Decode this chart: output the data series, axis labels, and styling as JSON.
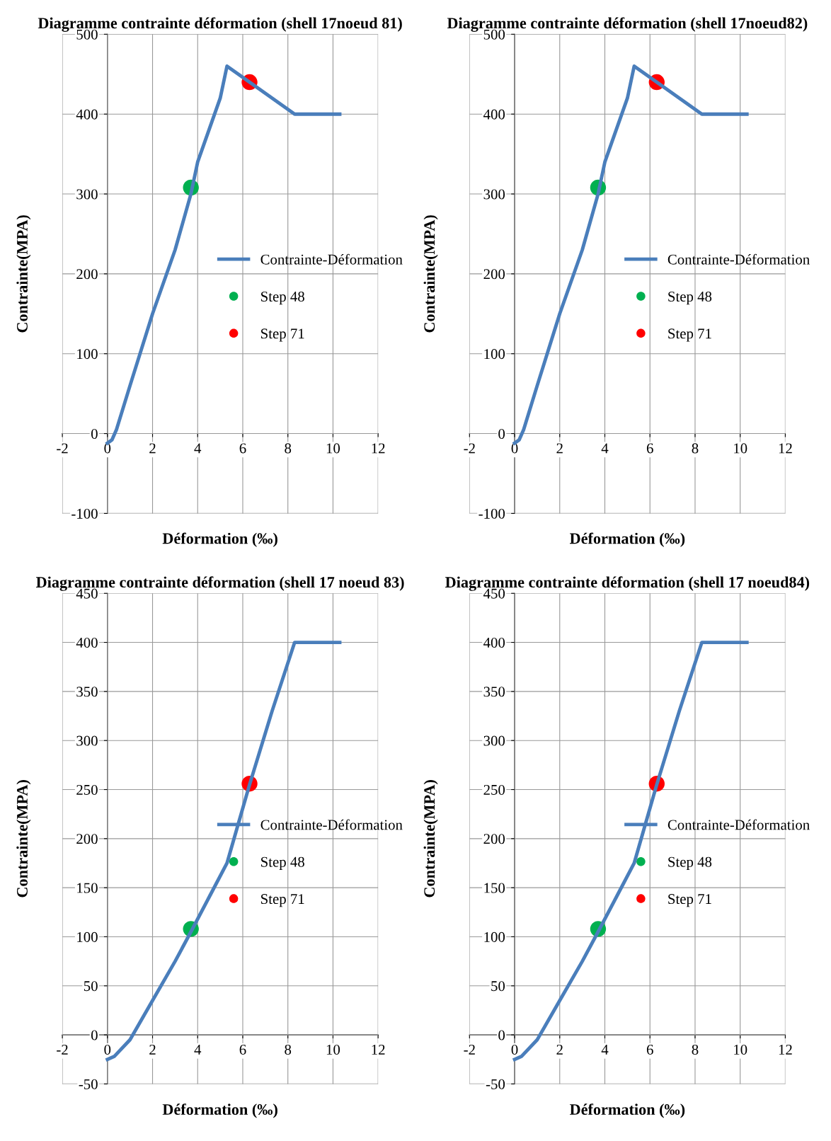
{
  "chart_data": [
    {
      "type": "line",
      "title": "Diagramme contrainte déformation (shell 17noeud 81)",
      "xlabel": "Déformation (‰)",
      "ylabel": "Contrainte(MPA)",
      "xlim": [
        -2,
        12
      ],
      "xticks": [
        -2,
        0,
        2,
        4,
        6,
        8,
        10,
        12
      ],
      "ylim": [
        -100,
        500
      ],
      "yticks": [
        -100,
        0,
        100,
        200,
        300,
        400,
        500
      ],
      "grid": true,
      "legend": "right",
      "series": [
        {
          "name": "Contrainte-Déformation",
          "color": "#4a7ebb",
          "x": [
            0,
            0.2,
            0.4,
            1,
            2,
            3,
            3.7,
            4,
            5,
            5.3,
            6.3,
            8.3,
            10.3
          ],
          "values": [
            -12,
            -8,
            5,
            60,
            150,
            230,
            300,
            340,
            420,
            460,
            440,
            400,
            400
          ]
        },
        {
          "name": "Step 48",
          "type": "scatter",
          "color": "#00b050",
          "marker": "circle",
          "x": [
            3.7
          ],
          "values": [
            308
          ]
        },
        {
          "name": "Step 71",
          "type": "scatter",
          "color": "#ff0000",
          "marker": "circle",
          "x": [
            6.3
          ],
          "values": [
            440
          ]
        }
      ]
    },
    {
      "type": "line",
      "title": "Diagramme contrainte déformation (shell 17noeud82)",
      "xlabel": "Déformation (‰)",
      "ylabel": "Contrainte(MPA)",
      "xlim": [
        -2,
        12
      ],
      "xticks": [
        -2,
        0,
        2,
        4,
        6,
        8,
        10,
        12
      ],
      "ylim": [
        -100,
        500
      ],
      "yticks": [
        -100,
        0,
        100,
        200,
        300,
        400,
        500
      ],
      "grid": true,
      "legend": "right",
      "series": [
        {
          "name": "Contrainte-Déformation",
          "color": "#4a7ebb",
          "x": [
            0,
            0.2,
            0.4,
            1,
            2,
            3,
            3.7,
            4,
            5,
            5.3,
            6.3,
            8.3,
            10.3
          ],
          "values": [
            -12,
            -8,
            5,
            60,
            150,
            230,
            300,
            340,
            420,
            460,
            440,
            400,
            400
          ]
        },
        {
          "name": "Step 48",
          "type": "scatter",
          "color": "#00b050",
          "marker": "circle",
          "x": [
            3.7
          ],
          "values": [
            308
          ]
        },
        {
          "name": "Step 71",
          "type": "scatter",
          "color": "#ff0000",
          "marker": "circle",
          "x": [
            6.3
          ],
          "values": [
            440
          ]
        }
      ]
    },
    {
      "type": "line",
      "title": "Diagramme contrainte déformation (shell 17 noeud 83)",
      "xlabel": "Déformation (‰)",
      "ylabel": "Contrainte(MPA)",
      "xlim": [
        -2,
        12
      ],
      "xticks": [
        -2,
        0,
        2,
        4,
        6,
        8,
        10,
        12
      ],
      "ylim": [
        -50,
        450
      ],
      "yticks": [
        -50,
        0,
        50,
        100,
        150,
        200,
        250,
        300,
        350,
        400,
        450
      ],
      "grid": true,
      "legend": "right",
      "series": [
        {
          "name": "Contrainte-Déformation",
          "color": "#4a7ebb",
          "x": [
            0,
            0.3,
            1,
            2,
            3,
            3.7,
            4.5,
            5.3,
            5.8,
            6.3,
            7.3,
            8.3,
            10.3
          ],
          "values": [
            -25,
            -22,
            -5,
            35,
            75,
            105,
            140,
            175,
            215,
            255,
            330,
            400,
            400
          ]
        },
        {
          "name": "Step 48",
          "type": "scatter",
          "color": "#00b050",
          "marker": "circle",
          "x": [
            3.7
          ],
          "values": [
            108
          ]
        },
        {
          "name": "Step 71",
          "type": "scatter",
          "color": "#ff0000",
          "marker": "circle",
          "x": [
            6.3
          ],
          "values": [
            256
          ]
        }
      ]
    },
    {
      "type": "line",
      "title": "Diagramme contrainte déformation (shell 17 noeud84)",
      "xlabel": "Déformation (‰)",
      "ylabel": "Contrainte(MPA)",
      "xlim": [
        -2,
        12
      ],
      "xticks": [
        -2,
        0,
        2,
        4,
        6,
        8,
        10,
        12
      ],
      "ylim": [
        -50,
        450
      ],
      "yticks": [
        -50,
        0,
        50,
        100,
        150,
        200,
        250,
        300,
        350,
        400,
        450
      ],
      "grid": true,
      "legend": "right",
      "series": [
        {
          "name": "Contrainte-Déformation",
          "color": "#4a7ebb",
          "x": [
            0,
            0.3,
            1,
            2,
            3,
            3.7,
            4.5,
            5.3,
            5.8,
            6.3,
            7.3,
            8.3,
            10.3
          ],
          "values": [
            -25,
            -22,
            -5,
            35,
            75,
            105,
            140,
            175,
            215,
            255,
            330,
            400,
            400
          ]
        },
        {
          "name": "Step 48",
          "type": "scatter",
          "color": "#00b050",
          "marker": "circle",
          "x": [
            3.7
          ],
          "values": [
            108
          ]
        },
        {
          "name": "Step 71",
          "type": "scatter",
          "color": "#ff0000",
          "marker": "circle",
          "x": [
            6.3
          ],
          "values": [
            256
          ]
        }
      ]
    }
  ]
}
